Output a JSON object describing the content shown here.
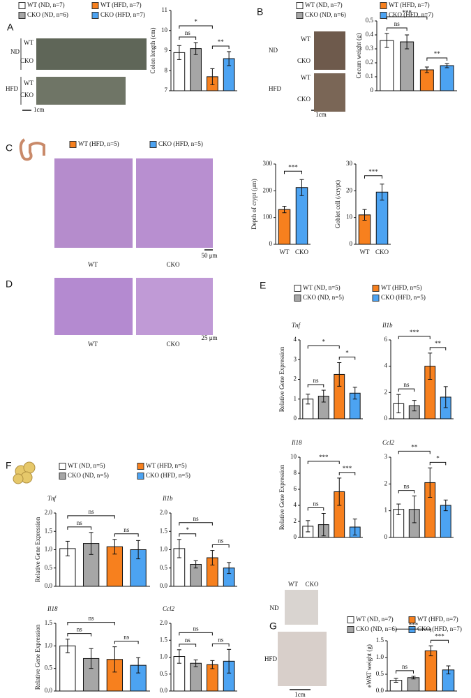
{
  "panels": [
    {
      "label": "A",
      "legend": [
        {
          "name": "WT (ND, n=7)",
          "color": "#ffffff"
        },
        {
          "name": "CKO (ND, n=6)",
          "color": "#a6a6a6"
        },
        {
          "name": "WT (HFD, n=7)",
          "color": "#f7801e"
        },
        {
          "name": "CKO (HFD, n=7)",
          "color": "#4ca3f2"
        }
      ],
      "texts": [
        "ND",
        "WT",
        "CKO",
        "HFD",
        "WT",
        "CKO",
        "1cm"
      ]
    },
    {
      "label": "B",
      "legend": [
        {
          "name": "WT (ND, n=7)",
          "color": "#ffffff"
        },
        {
          "name": "CKO (ND, n=6)",
          "color": "#a6a6a6"
        },
        {
          "name": "WT (HFD, n=7)",
          "color": "#f7801e"
        },
        {
          "name": "CKO (HFD, n=7)",
          "color": "#4ca3f2"
        }
      ],
      "texts": [
        "ND",
        "WT",
        "CKO",
        "HFD",
        "WT",
        "CKO",
        "1cm"
      ]
    },
    {
      "label": "C",
      "legend": [
        {
          "name": "WT (HFD, n=5)",
          "color": "#f7801e"
        },
        {
          "name": "CKO (HFD, n=5)",
          "color": "#4ca3f2"
        }
      ],
      "texts": [
        "WT",
        "CKO",
        "50 μm"
      ]
    },
    {
      "label": "D",
      "legend": [],
      "texts": [
        "WT",
        "CKO",
        "25 μm"
      ]
    },
    {
      "label": "E",
      "legend": [
        {
          "name": "WT (ND, n=5)",
          "color": "#ffffff"
        },
        {
          "name": "CKO (ND, n=5)",
          "color": "#a6a6a6"
        },
        {
          "name": "WT (HFD, n=5)",
          "color": "#f7801e"
        },
        {
          "name": "CKO (HFD, n=5)",
          "color": "#4ca3f2"
        }
      ],
      "texts": []
    },
    {
      "label": "F",
      "legend": [
        {
          "name": "WT (ND, n=5)",
          "color": "#ffffff"
        },
        {
          "name": "CKO (ND, n=5)",
          "color": "#a6a6a6"
        },
        {
          "name": "WT (HFD, n=5)",
          "color": "#f7801e"
        },
        {
          "name": "CKO (HFD, n=5)",
          "color": "#4ca3f2"
        }
      ],
      "texts": []
    },
    {
      "label": "G",
      "legend": [
        {
          "name": "WT (ND, n=7)",
          "color": "#ffffff"
        },
        {
          "name": "CKO (ND, n=6)",
          "color": "#a6a6a6"
        },
        {
          "name": "WT (HFD, n=7)",
          "color": "#f7801e"
        },
        {
          "name": "CKO (HFD, n=7)",
          "color": "#4ca3f2"
        }
      ],
      "texts": [
        "WT",
        "CKO",
        "ND",
        "HFD",
        "1cm"
      ]
    }
  ],
  "chart_data": [
    {
      "type": "bar",
      "ylabel": "Colon length (cm)",
      "ylim": [
        7,
        11
      ],
      "yticks": [
        7,
        8,
        9,
        10,
        11
      ],
      "values": [
        8.9,
        9.1,
        7.7,
        8.6
      ],
      "errors": [
        0.35,
        0.3,
        0.4,
        0.35
      ],
      "colors": [
        "#ffffff",
        "#a6a6a6",
        "#f7801e",
        "#4ca3f2"
      ],
      "annotations": [
        "ns",
        "*",
        "**"
      ]
    },
    {
      "type": "bar",
      "ylabel": "Cecum weight (g)",
      "ylim": [
        0,
        0.5
      ],
      "yticks": [
        0,
        0.1,
        0.2,
        0.3,
        0.4,
        0.5
      ],
      "values": [
        0.36,
        0.35,
        0.15,
        0.18
      ],
      "errors": [
        0.05,
        0.05,
        0.02,
        0.015
      ],
      "colors": [
        "#ffffff",
        "#a6a6a6",
        "#f7801e",
        "#4ca3f2"
      ],
      "annotations": [
        "ns",
        "***",
        "**"
      ]
    },
    {
      "type": "bar",
      "ylabel": "Depth of crypt (μm)",
      "categories": [
        "WT",
        "CKO"
      ],
      "ylim": [
        0,
        300
      ],
      "yticks": [
        0,
        100,
        200,
        300
      ],
      "values": [
        130,
        212
      ],
      "errors": [
        12,
        30
      ],
      "colors": [
        "#f7801e",
        "#4ca3f2"
      ],
      "annotations": [
        "***"
      ]
    },
    {
      "type": "bar",
      "ylabel": "Goblet cell (/crypt)",
      "categories": [
        "WT",
        "CKO"
      ],
      "ylim": [
        0,
        30
      ],
      "yticks": [
        0,
        10,
        20,
        30
      ],
      "values": [
        11,
        19.5
      ],
      "errors": [
        2,
        3
      ],
      "colors": [
        "#f7801e",
        "#4ca3f2"
      ],
      "annotations": [
        "***"
      ]
    },
    {
      "type": "bar",
      "title": "Tnf",
      "ylabel": "Relative Gene Expression",
      "ylim": [
        0,
        4
      ],
      "yticks": [
        0,
        1,
        2,
        3,
        4
      ],
      "values": [
        1.0,
        1.15,
        2.25,
        1.3
      ],
      "errors": [
        0.25,
        0.3,
        0.6,
        0.3
      ],
      "colors": [
        "#ffffff",
        "#a6a6a6",
        "#f7801e",
        "#4ca3f2"
      ],
      "annotations": [
        "ns",
        "*",
        "*"
      ]
    },
    {
      "type": "bar",
      "title": "Il1b",
      "ylim": [
        0,
        6
      ],
      "yticks": [
        0,
        2,
        4,
        6
      ],
      "values": [
        1.15,
        1.0,
        4.0,
        1.65
      ],
      "errors": [
        0.7,
        0.4,
        1.0,
        0.8
      ],
      "colors": [
        "#ffffff",
        "#a6a6a6",
        "#f7801e",
        "#4ca3f2"
      ],
      "annotations": [
        "ns",
        "***",
        "**"
      ]
    },
    {
      "type": "bar",
      "title": "Il18",
      "ylabel": "Relative Gene Expression",
      "ylim": [
        0,
        10
      ],
      "yticks": [
        0,
        2,
        4,
        6,
        8,
        10
      ],
      "values": [
        1.4,
        1.6,
        5.7,
        1.3
      ],
      "errors": [
        0.7,
        1.4,
        1.7,
        1.0
      ],
      "colors": [
        "#ffffff",
        "#a6a6a6",
        "#f7801e",
        "#4ca3f2"
      ],
      "annotations": [
        "ns",
        "***",
        "***"
      ]
    },
    {
      "type": "bar",
      "title": "Ccl2",
      "ylim": [
        0,
        3
      ],
      "yticks": [
        0,
        1,
        2,
        3
      ],
      "values": [
        1.05,
        1.05,
        2.05,
        1.2
      ],
      "errors": [
        0.2,
        0.5,
        0.55,
        0.2
      ],
      "colors": [
        "#ffffff",
        "#a6a6a6",
        "#f7801e",
        "#4ca3f2"
      ],
      "annotations": [
        "ns",
        "**",
        "*"
      ]
    },
    {
      "type": "bar",
      "title": "Tnf",
      "ylabel": "Relative Gene Expression",
      "ylim": [
        0,
        2
      ],
      "yticks": [
        {
          "value": 0,
          "label": "0.0"
        },
        0.5,
        {
          "value": 1,
          "label": "1.0"
        },
        1.5,
        {
          "value": 2,
          "label": "2.0"
        }
      ],
      "values": [
        1.03,
        1.17,
        1.08,
        1.0
      ],
      "errors": [
        0.2,
        0.3,
        0.2,
        0.25
      ],
      "colors": [
        "#ffffff",
        "#a6a6a6",
        "#f7801e",
        "#4ca3f2"
      ],
      "annotations": [
        "ns",
        "ns",
        "ns"
      ]
    },
    {
      "type": "bar",
      "title": "Il1b",
      "ylim": [
        0,
        2
      ],
      "yticks": [
        {
          "value": 0,
          "label": "0.0"
        },
        0.5,
        {
          "value": 1,
          "label": "1.0"
        },
        1.5,
        {
          "value": 2,
          "label": "2.0"
        }
      ],
      "values": [
        1.03,
        0.6,
        0.78,
        0.5
      ],
      "errors": [
        0.25,
        0.1,
        0.2,
        0.15
      ],
      "colors": [
        "#ffffff",
        "#a6a6a6",
        "#f7801e",
        "#4ca3f2"
      ],
      "annotations": [
        "*",
        "ns",
        "ns"
      ]
    },
    {
      "type": "bar",
      "title": "Il18",
      "ylabel": "Relative Gene Expression",
      "ylim": [
        0,
        1.5
      ],
      "yticks": [
        {
          "value": 0,
          "label": "0.0"
        },
        0.5,
        {
          "value": 1,
          "label": "1.0"
        },
        1.5
      ],
      "values": [
        1.0,
        0.72,
        0.7,
        0.57
      ],
      "errors": [
        0.15,
        0.22,
        0.28,
        0.17
      ],
      "colors": [
        "#ffffff",
        "#a6a6a6",
        "#f7801e",
        "#4ca3f2"
      ],
      "annotations": [
        "ns",
        "ns",
        "ns"
      ]
    },
    {
      "type": "bar",
      "title": "Ccl2",
      "ylim": [
        0,
        2
      ],
      "yticks": [
        {
          "value": 0,
          "label": "0.0"
        },
        0.5,
        {
          "value": 1,
          "label": "1.0"
        },
        1.5,
        {
          "value": 2,
          "label": "2.0"
        }
      ],
      "values": [
        1.02,
        0.82,
        0.78,
        0.88
      ],
      "errors": [
        0.2,
        0.1,
        0.12,
        0.35
      ],
      "colors": [
        "#ffffff",
        "#a6a6a6",
        "#f7801e",
        "#4ca3f2"
      ],
      "annotations": [
        "ns",
        "ns",
        "ns"
      ]
    },
    {
      "type": "bar",
      "ylabel": "eWAT weight (g)",
      "ylim": [
        0,
        1.5
      ],
      "yticks": [
        {
          "value": 0,
          "label": "0.0"
        },
        0.5,
        {
          "value": 1,
          "label": "1.0"
        },
        1.5
      ],
      "values": [
        0.32,
        0.4,
        1.2,
        0.63
      ],
      "errors": [
        0.06,
        0.04,
        0.15,
        0.12
      ],
      "colors": [
        "#ffffff",
        "#a6a6a6",
        "#f7801e",
        "#4ca3f2"
      ],
      "annotations": [
        "ns",
        "***",
        "***"
      ]
    }
  ]
}
